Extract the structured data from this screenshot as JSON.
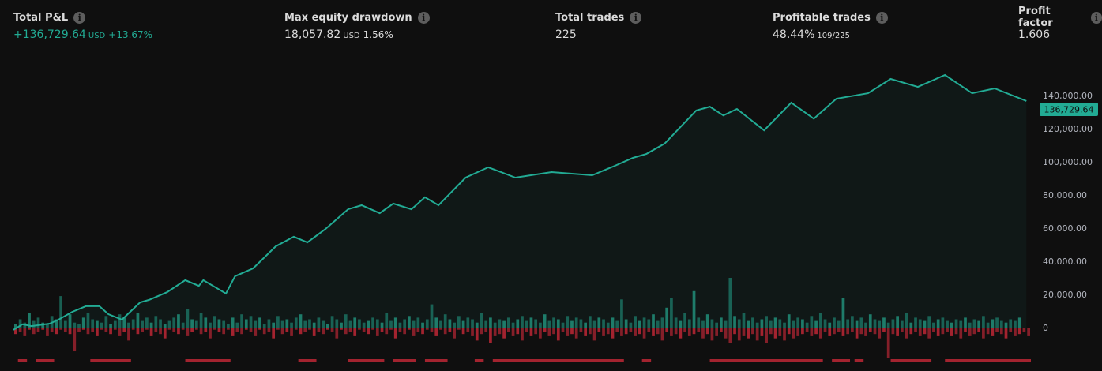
{
  "metrics": [
    {
      "title": "Total P&L",
      "value": "+136,729.64",
      "unit": "USD",
      "extra": "+13.67%",
      "positive": true
    },
    {
      "title": "Max equity drawdown",
      "value": "18,057.82",
      "unit": "USD",
      "extra": "1.56%",
      "positive": false
    },
    {
      "title": "Total trades",
      "value": "225",
      "unit": "",
      "extra": "",
      "positive": false
    },
    {
      "title": "Profitable trades",
      "value": "48.44%",
      "unit": "",
      "extra": "109/225",
      "positive": false
    },
    {
      "title": "Profit factor",
      "value": "1.606",
      "unit": "",
      "extra": "",
      "positive": false
    }
  ],
  "info_icon": "info-icon",
  "colors": {
    "equity": "#22ab94",
    "run_up": "#1e7a68",
    "drawdown": "#a3232f",
    "tag_bg": "#22ab94",
    "background": "#0f0f0f"
  },
  "chart_data": {
    "type": "line",
    "x_label": "",
    "y_label": "",
    "xlim": [
      0,
      225
    ],
    "ylim": [
      -5000,
      150000
    ],
    "y_ticks": [
      0,
      20000,
      40000,
      60000,
      80000,
      100000,
      120000,
      140000
    ],
    "y_tick_labels": [
      "0",
      "20,000.00",
      "40,000.00",
      "60,000.00",
      "80,000.00",
      "100,000.00",
      "120,000.00",
      "140,000.00"
    ],
    "last_value_label": "136,729.64",
    "equity": {
      "trade": [
        0,
        2,
        4,
        8,
        10,
        13,
        16,
        19,
        21,
        24,
        28,
        30,
        34,
        38,
        41,
        42,
        47,
        49,
        53,
        58,
        62,
        65,
        69,
        74,
        77,
        81,
        84,
        88,
        91,
        94,
        100,
        105,
        111,
        119,
        128,
        133,
        137,
        140,
        144,
        151,
        154,
        157,
        160,
        166,
        172,
        177,
        182,
        189,
        194,
        200,
        206,
        212,
        217,
        224
      ],
      "value": [
        -1400,
        2000,
        900,
        2400,
        4800,
        9500,
        12900,
        12900,
        8100,
        4800,
        15200,
        16700,
        21400,
        28600,
        25200,
        28600,
        20500,
        31000,
        35700,
        49000,
        54800,
        51400,
        59500,
        71400,
        73800,
        69000,
        74800,
        71400,
        78600,
        73800,
        90500,
        96700,
        90500,
        93800,
        91900,
        97600,
        102400,
        104800,
        111000,
        131000,
        133300,
        128000,
        131900,
        119000,
        135700,
        126000,
        138100,
        141400,
        150000,
        145200,
        152400,
        141400,
        144300,
        136729.64
      ]
    },
    "run_up": [
      2000,
      5000,
      3000,
      9000,
      4000,
      6000,
      3000,
      2000,
      7000,
      5000,
      19000,
      4000,
      8000,
      3000,
      2000,
      6000,
      9000,
      5000,
      4000,
      3000,
      7000,
      2000,
      4000,
      8000,
      6000,
      3000,
      5000,
      9000,
      4000,
      6000,
      3000,
      7000,
      5000,
      2000,
      4000,
      6000,
      8000,
      3000,
      11000,
      5000,
      4000,
      9000,
      6000,
      3000,
      7000,
      5000,
      4000,
      2000,
      6000,
      3000,
      8000,
      5000,
      7000,
      4000,
      6000,
      2000,
      5000,
      3000,
      7000,
      4000,
      5000,
      3000,
      6000,
      8000,
      4000,
      5000,
      3000,
      6000,
      4000,
      2000,
      7000,
      5000,
      3000,
      8000,
      4000,
      6000,
      5000,
      3000,
      4000,
      6000,
      5000,
      3000,
      9000,
      4000,
      6000,
      3000,
      5000,
      7000,
      4000,
      6000,
      3000,
      5000,
      14000,
      6000,
      4000,
      8000,
      5000,
      3000,
      7000,
      4000,
      6000,
      5000,
      3000,
      9000,
      4000,
      6000,
      3000,
      5000,
      4000,
      6000,
      3000,
      5000,
      7000,
      4000,
      6000,
      5000,
      3000,
      8000,
      4000,
      6000,
      5000,
      3000,
      7000,
      4000,
      6000,
      5000,
      3000,
      7000,
      4000,
      6000,
      5000,
      3000,
      6000,
      4000,
      17000,
      5000,
      3000,
      7000,
      4000,
      6000,
      5000,
      8000,
      4000,
      6000,
      12000,
      18000,
      6000,
      4000,
      9000,
      5000,
      22000,
      6000,
      4000,
      8000,
      5000,
      3000,
      6000,
      4000,
      30000,
      7000,
      5000,
      9000,
      4000,
      6000,
      3000,
      5000,
      7000,
      4000,
      6000,
      5000,
      3000,
      8000,
      4000,
      6000,
      5000,
      3000,
      7000,
      4000,
      9000,
      5000,
      3000,
      6000,
      4000,
      18000,
      5000,
      7000,
      4000,
      6000,
      3000,
      8000,
      5000,
      4000,
      6000,
      3000,
      5000,
      7000,
      4000,
      9000,
      3000,
      6000,
      5000,
      4000,
      7000,
      3000,
      5000,
      6000,
      4000,
      3000,
      5000,
      4000,
      6000,
      3000,
      5000,
      4000,
      7000,
      3000,
      5000,
      6000,
      4000,
      3000,
      5000,
      4000,
      6000
    ],
    "drawdown": [
      3000,
      2000,
      4000,
      1000,
      3000,
      2000,
      1000,
      4000,
      2000,
      3000,
      1000,
      2000,
      3000,
      11000,
      2000,
      1000,
      3000,
      2000,
      4000,
      1000,
      2000,
      3000,
      1000,
      4000,
      2000,
      6000,
      1000,
      3000,
      2000,
      1000,
      4000,
      2000,
      3000,
      5000,
      1000,
      2000,
      3000,
      1000,
      4000,
      2000,
      1000,
      3000,
      2000,
      5000,
      1000,
      2000,
      3000,
      1000,
      4000,
      2000,
      3000,
      1000,
      2000,
      4000,
      1000,
      3000,
      2000,
      5000,
      1000,
      3000,
      2000,
      4000,
      1000,
      3000,
      2000,
      1000,
      4000,
      2000,
      3000,
      1000,
      2000,
      5000,
      1000,
      3000,
      2000,
      4000,
      1000,
      2000,
      3000,
      1000,
      4000,
      2000,
      3000,
      1000,
      5000,
      2000,
      3000,
      1000,
      4000,
      2000,
      3000,
      1000,
      2000,
      4000,
      1000,
      3000,
      2000,
      5000,
      1000,
      3000,
      2000,
      4000,
      6000,
      3000,
      2000,
      7000,
      4000,
      3000,
      5000,
      2000,
      4000,
      3000,
      6000,
      2000,
      4000,
      3000,
      5000,
      2000,
      4000,
      3000,
      6000,
      2000,
      4000,
      3000,
      5000,
      2000,
      4000,
      3000,
      6000,
      2000,
      4000,
      3000,
      5000,
      2000,
      4000,
      3000,
      2000,
      4000,
      3000,
      5000,
      2000,
      4000,
      3000,
      6000,
      2000,
      4000,
      3000,
      5000,
      2000,
      4000,
      3000,
      2000,
      5000,
      3000,
      6000,
      4000,
      2000,
      5000,
      7000,
      3000,
      6000,
      4000,
      5000,
      3000,
      6000,
      4000,
      7000,
      3000,
      5000,
      4000,
      6000,
      3000,
      5000,
      4000,
      3000,
      2000,
      4000,
      3000,
      5000,
      2000,
      4000,
      3000,
      2000,
      4000,
      3000,
      2000,
      5000,
      3000,
      4000,
      2000,
      3000,
      5000,
      2000,
      14000,
      3000,
      4000,
      2000,
      5000,
      3000,
      2000,
      4000,
      3000,
      5000,
      2000,
      4000,
      3000,
      2000,
      4000,
      3000,
      5000,
      2000,
      4000,
      3000,
      2000,
      5000,
      3000,
      4000,
      2000,
      3000,
      5000,
      2000,
      4000,
      3000,
      2000,
      4000,
      3000
    ],
    "drawdown_periods": [
      [
        1,
        3
      ],
      [
        5,
        9
      ],
      [
        17,
        26
      ],
      [
        38,
        48
      ],
      [
        63,
        67
      ],
      [
        74,
        82
      ],
      [
        84,
        89
      ],
      [
        91,
        96
      ],
      [
        102,
        104
      ],
      [
        106,
        135
      ],
      [
        139,
        141
      ],
      [
        154,
        179
      ],
      [
        181,
        185
      ],
      [
        186,
        188
      ],
      [
        194,
        203
      ],
      [
        206,
        225
      ]
    ]
  }
}
